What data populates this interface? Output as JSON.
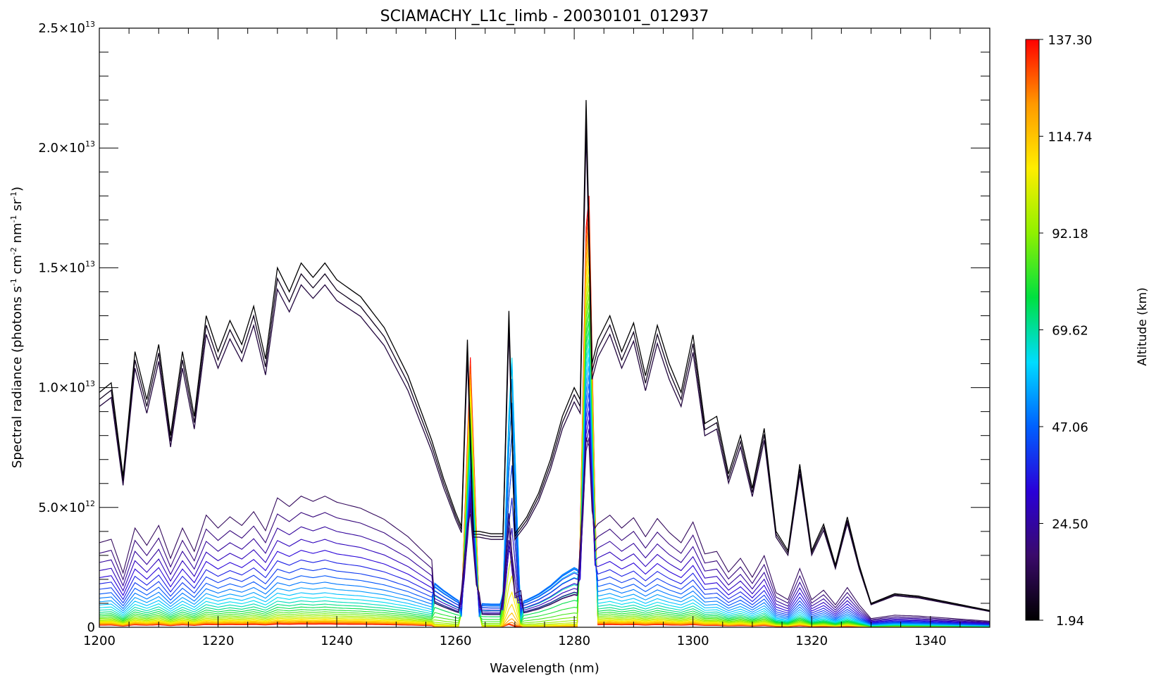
{
  "chart_data": {
    "type": "line",
    "title": "SCIAMACHY_L1c_limb  -  20030101_012937",
    "xlabel": "Wavelength (nm)",
    "ylabel_parts": {
      "pre": "Spectral radiance (photons  s",
      "sup1": "-1",
      "mid1": " cm",
      "sup2": "-2",
      "mid2": " nm",
      "sup3": "-1",
      "mid3": " sr",
      "sup4": "-1",
      "post": ")"
    },
    "xlim": [
      1200,
      1350
    ],
    "ylim": [
      0,
      25000000000000.0
    ],
    "x_ticks": [
      1200,
      1220,
      1240,
      1260,
      1280,
      1300,
      1320,
      1340
    ],
    "x_tick_labels": [
      "1200",
      "1220",
      "1240",
      "1260",
      "1280",
      "1300",
      "1320",
      "1340"
    ],
    "y_ticks": [
      {
        "value": 0,
        "mantissa": "0",
        "exp": ""
      },
      {
        "value": 5000000000000.0,
        "mantissa": "5.0×10",
        "exp": "12"
      },
      {
        "value": 10000000000000.0,
        "mantissa": "1.0×10",
        "exp": "13"
      },
      {
        "value": 15000000000000.0,
        "mantissa": "1.5×10",
        "exp": "13"
      },
      {
        "value": 20000000000000.0,
        "mantissa": "2.0×10",
        "exp": "13"
      },
      {
        "value": 25000000000000.0,
        "mantissa": "2.5×10",
        "exp": "13"
      }
    ],
    "series_profile": {
      "x": [
        1200,
        1202,
        1204,
        1206,
        1208,
        1210,
        1212,
        1214,
        1216,
        1218,
        1220,
        1222,
        1224,
        1226,
        1228,
        1230,
        1232,
        1234,
        1236,
        1238,
        1240,
        1244,
        1248,
        1252,
        1256,
        1258,
        1260,
        1261,
        1262,
        1263,
        1264,
        1266,
        1268,
        1269,
        1270,
        1272,
        1274,
        1276,
        1278,
        1280,
        1281,
        1282,
        1283,
        1284,
        1286,
        1288,
        1290,
        1292,
        1294,
        1296,
        1298,
        1300,
        1302,
        1304,
        1306,
        1308,
        1310,
        1312,
        1314,
        1316,
        1318,
        1320,
        1322,
        1324,
        1326,
        1328,
        1330,
        1334,
        1338,
        1342,
        1346,
        1350
      ],
      "peak_y": [
        9800000000000.0,
        10200000000000.0,
        6300000000000.0,
        11500000000000.0,
        9500000000000.0,
        11800000000000.0,
        8000000000000.0,
        11500000000000.0,
        8800000000000.0,
        13000000000000.0,
        11500000000000.0,
        12800000000000.0,
        11800000000000.0,
        13400000000000.0,
        11200000000000.0,
        15000000000000.0,
        14000000000000.0,
        15200000000000.0,
        14600000000000.0,
        15200000000000.0,
        14500000000000.0,
        13800000000000.0,
        12500000000000.0,
        10500000000000.0,
        7800000000000.0,
        6200000000000.0,
        4800000000000.0,
        4200000000000.0,
        12000000000000.0,
        4000000000000.0,
        4000000000000.0,
        3900000000000.0,
        3900000000000.0,
        13200000000000.0,
        3900000000000.0,
        4600000000000.0,
        5600000000000.0,
        7000000000000.0,
        8800000000000.0,
        10000000000000.0,
        9500000000000.0,
        22000000000000.0,
        11000000000000.0,
        12000000000000.0,
        13000000000000.0,
        11500000000000.0,
        12700000000000.0,
        10500000000000.0,
        12600000000000.0,
        11000000000000.0,
        9800000000000.0,
        12200000000000.0,
        8500000000000.0,
        8800000000000.0,
        6400000000000.0,
        8000000000000.0,
        5800000000000.0,
        8300000000000.0,
        4000000000000.0,
        3200000000000.0,
        6800000000000.0,
        3200000000000.0,
        4300000000000.0,
        2600000000000.0,
        4600000000000.0,
        2600000000000.0,
        1000000000000.0,
        1400000000000.0,
        1300000000000.0,
        1100000000000.0,
        900000000000.0,
        700000000000.0
      ]
    },
    "emission_peaks_nm": [
      1262.5,
      1269.4,
      1282.3
    ],
    "series_count": 32,
    "colorbar": {
      "label": "Altitude (km)",
      "range": [
        1.94,
        137.3
      ],
      "tick_values": [
        1.94,
        24.5,
        47.06,
        69.62,
        92.18,
        114.74,
        137.3
      ],
      "tick_labels": [
        "1.94",
        "24.50",
        "47.06",
        "69.62",
        "92.18",
        "114.74",
        "137.30"
      ],
      "colormap": [
        "#000000",
        "#3a0a6a",
        "#2a00d8",
        "#0060ff",
        "#00dcff",
        "#00e040",
        "#90f000",
        "#ffee00",
        "#ff9900",
        "#ff0000"
      ]
    },
    "grid": false,
    "legend": "colorbar-right"
  }
}
